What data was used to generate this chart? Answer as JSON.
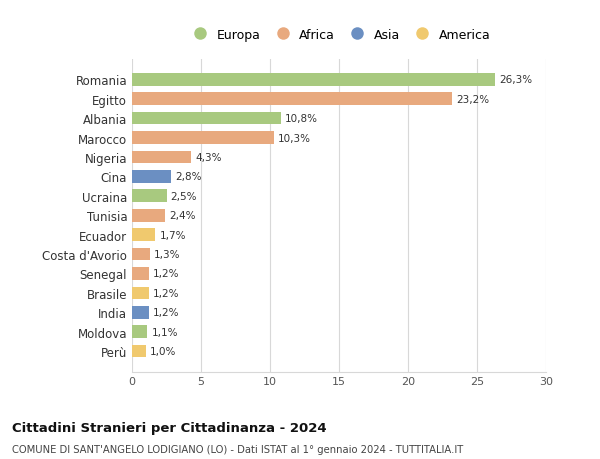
{
  "countries": [
    "Romania",
    "Egitto",
    "Albania",
    "Marocco",
    "Nigeria",
    "Cina",
    "Ucraina",
    "Tunisia",
    "Ecuador",
    "Costa d'Avorio",
    "Senegal",
    "Brasile",
    "India",
    "Moldova",
    "Perù"
  ],
  "values": [
    26.3,
    23.2,
    10.8,
    10.3,
    4.3,
    2.8,
    2.5,
    2.4,
    1.7,
    1.3,
    1.2,
    1.2,
    1.2,
    1.1,
    1.0
  ],
  "labels": [
    "26,3%",
    "23,2%",
    "10,8%",
    "10,3%",
    "4,3%",
    "2,8%",
    "2,5%",
    "2,4%",
    "1,7%",
    "1,3%",
    "1,2%",
    "1,2%",
    "1,2%",
    "1,1%",
    "1,0%"
  ],
  "continents": [
    "Europa",
    "Africa",
    "Europa",
    "Africa",
    "Africa",
    "Asia",
    "Europa",
    "Africa",
    "America",
    "Africa",
    "Africa",
    "America",
    "Asia",
    "Europa",
    "America"
  ],
  "continent_colors": {
    "Europa": "#a8c97f",
    "Africa": "#e8a97e",
    "Asia": "#6b8fc2",
    "America": "#f0c96e"
  },
  "legend_order": [
    "Europa",
    "Africa",
    "Asia",
    "America"
  ],
  "title": "Cittadini Stranieri per Cittadinanza - 2024",
  "subtitle": "COMUNE DI SANT'ANGELO LODIGIANO (LO) - Dati ISTAT al 1° gennaio 2024 - TUTTITALIA.IT",
  "xlim": [
    0,
    30
  ],
  "xticks": [
    0,
    5,
    10,
    15,
    20,
    25,
    30
  ],
  "background_color": "#ffffff",
  "grid_color": "#d8d8d8",
  "bar_height": 0.65
}
